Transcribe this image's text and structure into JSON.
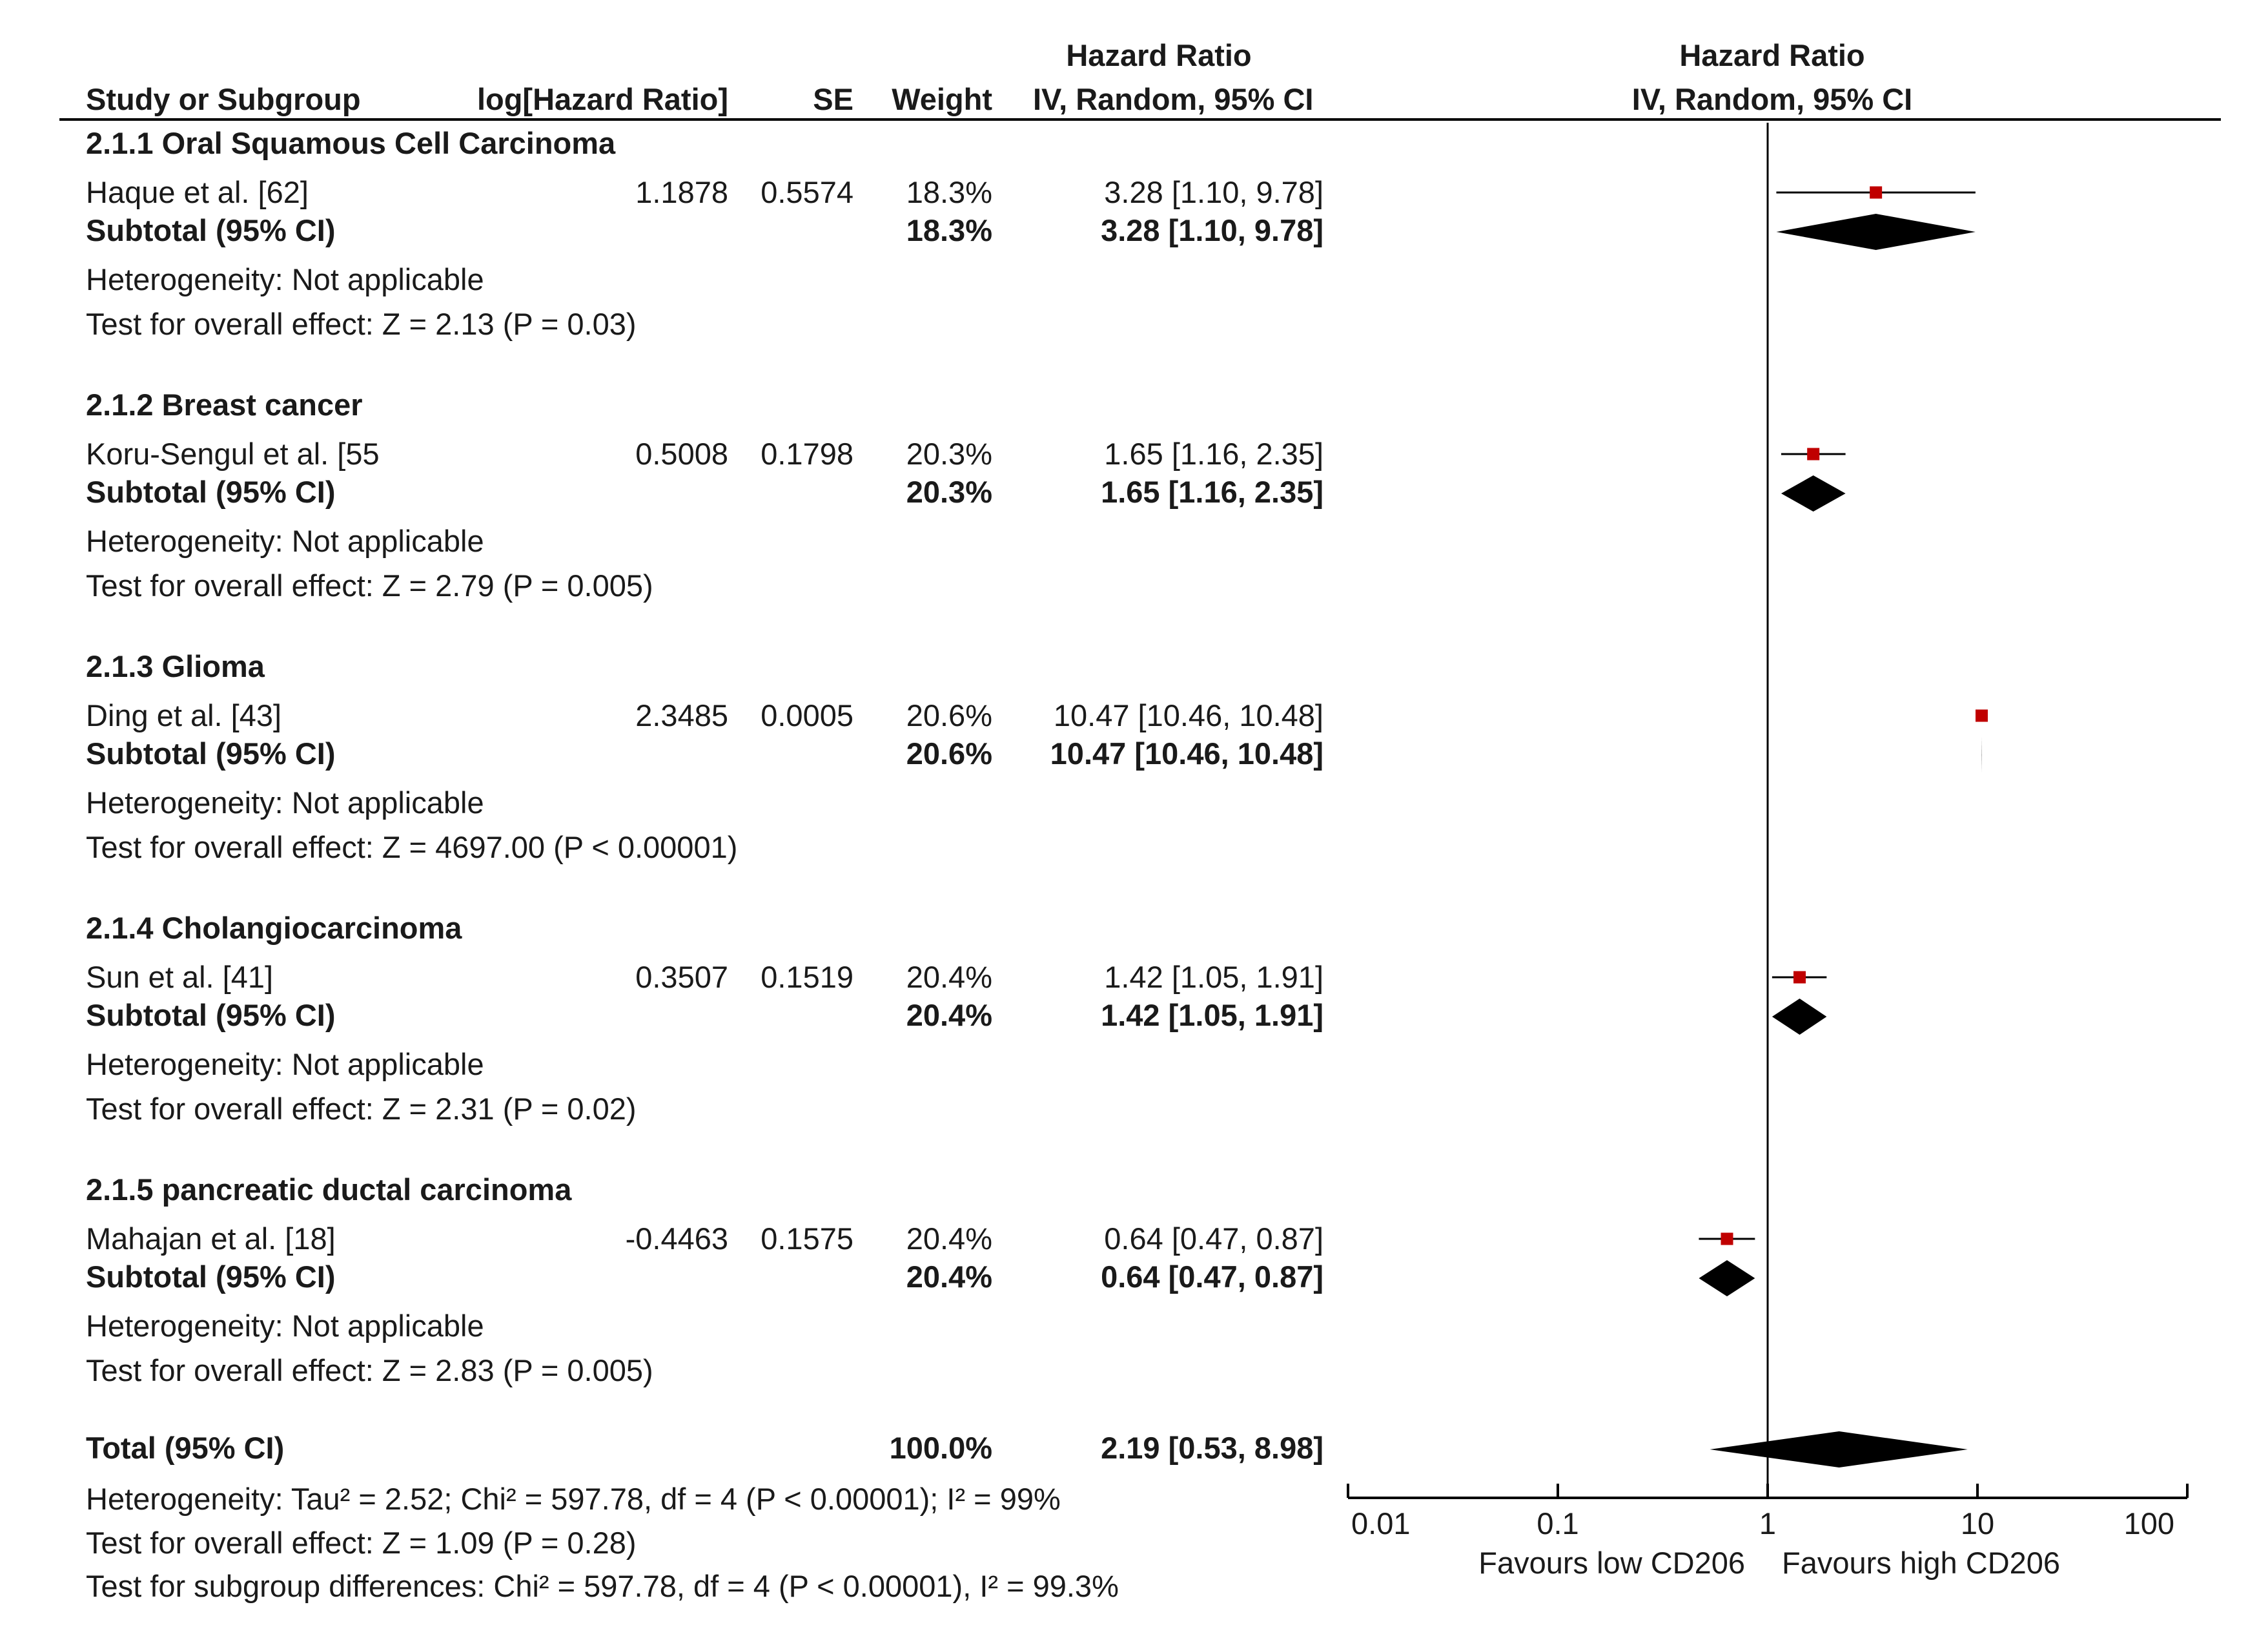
{
  "chart_data": {
    "type": "forest",
    "headers": {
      "group_top": "Hazard Ratio",
      "plot_top": "Hazard Ratio",
      "study": "Study or Subgroup",
      "loghr": "log[Hazard Ratio]",
      "se": "SE",
      "weight": "Weight",
      "hr": "IV, Random, 95% CI",
      "plot": "IV, Random, 95% CI"
    },
    "subtotal_label": "Subtotal (95% CI)",
    "subgroups": [
      {
        "title": "2.1.1 Oral Squamous Cell Carcinoma",
        "study": {
          "name": "Haque et al. [62]",
          "loghr": "1.1878",
          "se": "0.5574",
          "weight": "18.3%",
          "ci_text": "3.28 [1.10, 9.78]",
          "hr": 3.28,
          "lo": 1.1,
          "hi": 9.78
        },
        "subtotal": {
          "weight": "18.3%",
          "ci_text": "3.28 [1.10, 9.78]",
          "hr": 3.28,
          "lo": 1.1,
          "hi": 9.78
        },
        "heterogeneity": "Heterogeneity: Not applicable",
        "overall": "Test for overall effect: Z = 2.13 (P = 0.03)"
      },
      {
        "title": "2.1.2 Breast cancer",
        "study": {
          "name": "Koru-Sengul et al. [55",
          "loghr": "0.5008",
          "se": "0.1798",
          "weight": "20.3%",
          "ci_text": "1.65 [1.16, 2.35]",
          "hr": 1.65,
          "lo": 1.16,
          "hi": 2.35
        },
        "subtotal": {
          "weight": "20.3%",
          "ci_text": "1.65 [1.16, 2.35]",
          "hr": 1.65,
          "lo": 1.16,
          "hi": 2.35
        },
        "heterogeneity": "Heterogeneity: Not applicable",
        "overall": "Test for overall effect: Z = 2.79 (P = 0.005)"
      },
      {
        "title": "2.1.3 Glioma",
        "study": {
          "name": "Ding et al. [43]",
          "loghr": "2.3485",
          "se": "0.0005",
          "weight": "20.6%",
          "ci_text": "10.47 [10.46, 10.48]",
          "hr": 10.47,
          "lo": 10.46,
          "hi": 10.48
        },
        "subtotal": {
          "weight": "20.6%",
          "ci_text": "10.47 [10.46, 10.48]",
          "hr": 10.47,
          "lo": 10.46,
          "hi": 10.48
        },
        "heterogeneity": "Heterogeneity: Not applicable",
        "overall": "Test for overall effect: Z = 4697.00 (P < 0.00001)"
      },
      {
        "title": "2.1.4 Cholangiocarcinoma",
        "study": {
          "name": "Sun et al. [41]",
          "loghr": "0.3507",
          "se": "0.1519",
          "weight": "20.4%",
          "ci_text": "1.42 [1.05, 1.91]",
          "hr": 1.42,
          "lo": 1.05,
          "hi": 1.91
        },
        "subtotal": {
          "weight": "20.4%",
          "ci_text": "1.42 [1.05, 1.91]",
          "hr": 1.42,
          "lo": 1.05,
          "hi": 1.91
        },
        "heterogeneity": "Heterogeneity: Not applicable",
        "overall": "Test for overall effect: Z = 2.31 (P = 0.02)"
      },
      {
        "title": "2.1.5 pancreatic ductal carcinoma",
        "study": {
          "name": "Mahajan et al. [18]",
          "loghr": "-0.4463",
          "se": "0.1575",
          "weight": "20.4%",
          "ci_text": "0.64 [0.47, 0.87]",
          "hr": 0.64,
          "lo": 0.47,
          "hi": 0.87
        },
        "subtotal": {
          "weight": "20.4%",
          "ci_text": "0.64 [0.47, 0.87]",
          "hr": 0.64,
          "lo": 0.47,
          "hi": 0.87
        },
        "heterogeneity": "Heterogeneity: Not applicable",
        "overall": "Test for overall effect: Z = 2.83 (P = 0.005)"
      }
    ],
    "total": {
      "label": "Total (95% CI)",
      "weight": "100.0%",
      "ci_text": "2.19 [0.53, 8.98]",
      "hr": 2.19,
      "lo": 0.53,
      "hi": 8.98,
      "heterogeneity": "Heterogeneity: Tau² = 2.52; Chi² = 597.78, df = 4 (P < 0.00001); I² = 99%",
      "overall": "Test for overall effect: Z = 1.09 (P = 0.28)",
      "subgroup_diff": "Test for subgroup differences: Chi² = 597.78, df = 4 (P < 0.00001), I² = 99.3%"
    },
    "axis": {
      "scale": "log",
      "xlim": [
        0.01,
        100
      ],
      "ticks": [
        0.01,
        0.1,
        1,
        10,
        100
      ],
      "tick_labels": [
        "0.01",
        "0.1",
        "1",
        "10",
        "100"
      ],
      "null_value": 1,
      "favours_left": "Favours low CD206",
      "favours_right": "Favours high CD206"
    }
  },
  "colors": {
    "square": "#c00000",
    "diamond": "#000000",
    "line": "#000000",
    "text": "#1a1a1a"
  }
}
